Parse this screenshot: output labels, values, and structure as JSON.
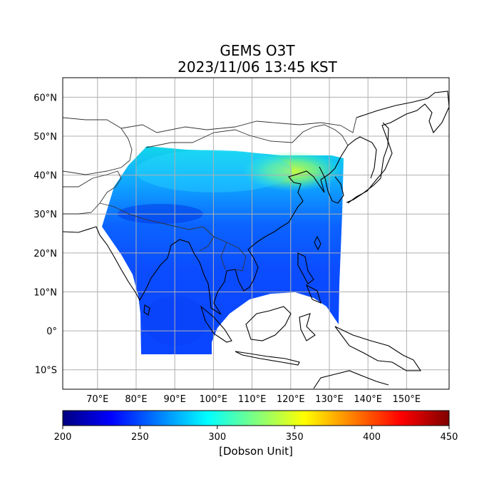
{
  "title": {
    "line1": "GEMS O3T",
    "line2": "2023/11/06 13:45 KST"
  },
  "map": {
    "projection": "PlateCarree",
    "lon_range": [
      61,
      161
    ],
    "lat_range": [
      -15,
      65
    ],
    "grid": true,
    "lon_ticks": [
      {
        "value": 70,
        "label": "70°E"
      },
      {
        "value": 80,
        "label": "80°E"
      },
      {
        "value": 90,
        "label": "90°E"
      },
      {
        "value": 100,
        "label": "100°E"
      },
      {
        "value": 110,
        "label": "110°E"
      },
      {
        "value": 120,
        "label": "120°E"
      },
      {
        "value": 130,
        "label": "130°E"
      },
      {
        "value": 140,
        "label": "140°E"
      },
      {
        "value": 150,
        "label": "150°E"
      }
    ],
    "lat_ticks": [
      {
        "value": 60,
        "label": "60°N"
      },
      {
        "value": 50,
        "label": "50°N"
      },
      {
        "value": 40,
        "label": "40°N"
      },
      {
        "value": 30,
        "label": "30°N"
      },
      {
        "value": 20,
        "label": "20°N"
      },
      {
        "value": 10,
        "label": "10°N"
      },
      {
        "value": 0,
        "label": "0°"
      },
      {
        "value": -10,
        "label": "10°S"
      }
    ]
  },
  "colorbar": {
    "min": 200,
    "max": 450,
    "ticks": [
      {
        "value": 200,
        "label": "200"
      },
      {
        "value": 250,
        "label": "250"
      },
      {
        "value": 300,
        "label": "300"
      },
      {
        "value": 350,
        "label": "350"
      },
      {
        "value": 400,
        "label": "400"
      },
      {
        "value": 450,
        "label": "450"
      }
    ],
    "label": "[Dobson Unit]",
    "colormap": "jet"
  }
}
